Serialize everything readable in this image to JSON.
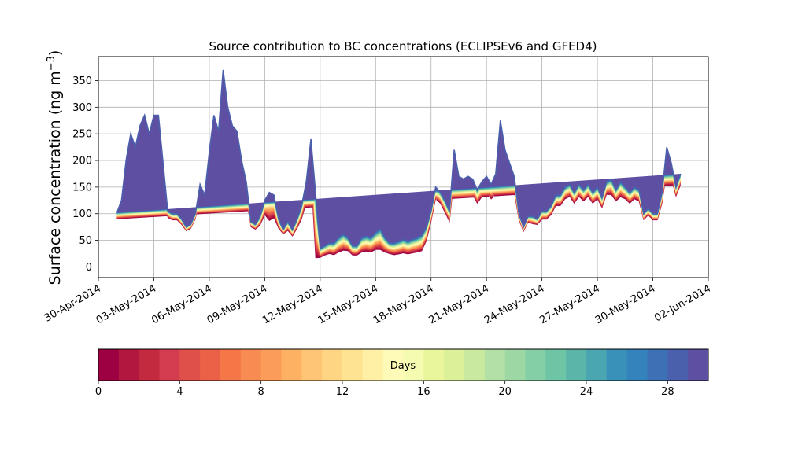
{
  "chart_data": {
    "type": "area",
    "title": "Source contribution to BC concentrations (ECLIPSEv6 and GFED4)",
    "xlabel": "",
    "ylabel": "Surface concentration (ng m",
    "ylabel_unit_sup": "−3",
    "ylabel_suffix": ")",
    "ylim": [
      -20,
      395
    ],
    "xlim": [
      "2014-04-30T00:00",
      "2014-06-02T00:00"
    ],
    "grid": true,
    "yticks": [
      0,
      50,
      100,
      150,
      200,
      250,
      300,
      350
    ],
    "xticks": [
      "30-Apr-2014",
      "03-May-2014",
      "06-May-2014",
      "09-May-2014",
      "12-May-2014",
      "15-May-2014",
      "18-May-2014",
      "21-May-2014",
      "24-May-2014",
      "27-May-2014",
      "30-May-2014",
      "02-Jun-2014"
    ],
    "x": [
      "2014-05-01T00:00",
      "2014-05-01T06:00",
      "2014-05-01T12:00",
      "2014-05-01T18:00",
      "2014-05-02T00:00",
      "2014-05-02T06:00",
      "2014-05-02T12:00",
      "2014-05-02T18:00",
      "2014-05-03T00:00",
      "2014-05-03T06:00",
      "2014-05-03T12:00",
      "2014-05-03T18:00",
      "2014-05-04T00:00",
      "2014-05-04T06:00",
      "2014-05-04T12:00",
      "2014-05-04T18:00",
      "2014-05-05T00:00",
      "2014-05-05T06:00",
      "2014-05-05T12:00",
      "2014-05-05T18:00",
      "2014-05-06T00:00",
      "2014-05-06T06:00",
      "2014-05-06T12:00",
      "2014-05-06T18:00",
      "2014-05-07T00:00",
      "2014-05-07T06:00",
      "2014-05-07T12:00",
      "2014-05-07T18:00",
      "2014-05-08T00:00",
      "2014-05-08T06:00",
      "2014-05-08T12:00",
      "2014-05-08T18:00",
      "2014-05-09T00:00",
      "2014-05-09T06:00",
      "2014-05-09T12:00",
      "2014-05-09T18:00",
      "2014-05-10T00:00",
      "2014-05-10T06:00",
      "2014-05-10T12:00",
      "2014-05-10T18:00",
      "2014-05-11T00:00",
      "2014-05-11T06:00",
      "2014-05-11T12:00",
      "2014-05-11T18:00",
      "2014-05-12T00:00",
      "2014-05-12T06:00",
      "2014-05-12T12:00",
      "2014-05-12T18:00",
      "2014-05-13T00:00",
      "2014-05-13T06:00",
      "2014-05-13T12:00",
      "2014-05-13T18:00",
      "2014-05-14T00:00",
      "2014-05-14T06:00",
      "2014-05-14T12:00",
      "2014-05-14T18:00",
      "2014-05-15T00:00",
      "2014-05-15T06:00",
      "2014-05-15T12:00",
      "2014-05-15T18:00",
      "2014-05-16T00:00",
      "2014-05-16T06:00",
      "2014-05-16T12:00",
      "2014-05-16T18:00",
      "2014-05-17T00:00",
      "2014-05-17T06:00",
      "2014-05-17T12:00",
      "2014-05-17T18:00",
      "2014-05-18T00:00",
      "2014-05-18T06:00",
      "2014-05-18T12:00",
      "2014-05-18T18:00",
      "2014-05-19T00:00",
      "2014-05-19T06:00",
      "2014-05-19T12:00",
      "2014-05-19T18:00",
      "2014-05-20T00:00",
      "2014-05-20T06:00",
      "2014-05-20T12:00",
      "2014-05-20T18:00",
      "2014-05-21T00:00",
      "2014-05-21T06:00",
      "2014-05-21T12:00",
      "2014-05-21T18:00",
      "2014-05-22T00:00",
      "2014-05-22T06:00",
      "2014-05-22T12:00",
      "2014-05-22T18:00",
      "2014-05-23T00:00",
      "2014-05-23T06:00",
      "2014-05-23T12:00",
      "2014-05-23T18:00",
      "2014-05-24T00:00",
      "2014-05-24T06:00",
      "2014-05-24T12:00",
      "2014-05-24T18:00",
      "2014-05-25T00:00",
      "2014-05-25T06:00",
      "2014-05-25T12:00",
      "2014-05-25T18:00",
      "2014-05-26T00:00",
      "2014-05-26T06:00",
      "2014-05-26T12:00",
      "2014-05-26T18:00",
      "2014-05-27T00:00",
      "2014-05-27T06:00",
      "2014-05-27T12:00",
      "2014-05-27T18:00",
      "2014-05-28T00:00",
      "2014-05-28T06:00",
      "2014-05-28T12:00",
      "2014-05-28T18:00",
      "2014-05-29T00:00",
      "2014-05-29T06:00",
      "2014-05-29T12:00",
      "2014-05-29T18:00",
      "2014-05-30T00:00",
      "2014-05-30T06:00",
      "2014-05-30T12:00",
      "2014-05-30T18:00",
      "2014-05-31T00:00",
      "2014-05-31T06:00",
      "2014-05-31T12:00",
      "2014-05-31T18:00",
      "2014-06-01T00:00"
    ],
    "total": [
      102,
      125,
      200,
      250,
      225,
      265,
      285,
      250,
      285,
      285,
      195,
      105,
      100,
      100,
      90,
      75,
      80,
      100,
      155,
      135,
      215,
      285,
      255,
      370,
      300,
      265,
      255,
      200,
      160,
      85,
      80,
      95,
      125,
      140,
      135,
      90,
      70,
      85,
      70,
      90,
      115,
      160,
      240,
      140,
      35,
      40,
      45,
      45,
      55,
      62,
      55,
      40,
      40,
      55,
      58,
      55,
      65,
      72,
      55,
      45,
      45,
      48,
      52,
      48,
      52,
      55,
      60,
      75,
      105,
      150,
      140,
      125,
      105,
      220,
      170,
      165,
      170,
      165,
      145,
      160,
      170,
      155,
      175,
      275,
      220,
      195,
      170,
      100,
      75,
      95,
      95,
      90,
      105,
      105,
      115,
      135,
      135,
      150,
      155,
      140,
      155,
      145,
      155,
      140,
      150,
      130,
      160,
      165,
      145,
      160,
      150,
      140,
      150,
      145,
      100,
      110,
      100,
      100,
      140,
      225,
      195,
      150,
      175
    ],
    "series_bands": [
      {
        "name": "",
        "values": [
          0.88,
          0.88,
          0.8,
          0.62,
          0.75,
          0.8,
          0.7,
          0.62,
          0.8,
          0.6,
          0.7,
          0.88,
          0.88,
          0.88,
          0.88,
          0.9,
          0.9,
          0.9,
          0.85,
          0.85,
          0.78,
          0.6,
          0.62,
          0.7,
          0.7,
          0.78,
          0.78,
          0.8,
          0.8,
          0.88,
          0.88,
          0.82,
          0.78,
          0.62,
          0.68,
          0.8,
          0.88,
          0.8,
          0.82,
          0.8,
          0.78,
          0.75,
          0.72,
          0.12,
          0.5,
          0.55,
          0.55,
          0.5,
          0.5,
          0.5,
          0.55,
          0.55,
          0.55,
          0.5,
          0.5,
          0.5,
          0.5,
          0.45,
          0.5,
          0.55,
          0.5,
          0.5,
          0.5,
          0.5,
          0.5,
          0.5,
          0.5,
          0.65,
          0.8,
          0.85,
          0.85,
          0.82,
          0.8,
          0.75,
          0.8,
          0.82,
          0.82,
          0.82,
          0.82,
          0.82,
          0.82,
          0.82,
          0.78,
          0.65,
          0.72,
          0.78,
          0.82,
          0.88,
          0.88,
          0.88,
          0.85,
          0.88,
          0.85,
          0.85,
          0.85,
          0.85,
          0.85,
          0.85,
          0.85,
          0.85,
          0.85,
          0.85,
          0.85,
          0.85,
          0.85,
          0.85,
          0.85,
          0.82,
          0.85,
          0.82,
          0.85,
          0.85,
          0.85,
          0.85,
          0.88,
          0.88,
          0.88,
          0.88,
          0.85,
          0.8,
          0.85,
          0.88,
          0.88
        ]
      }
    ],
    "colorbar": {
      "label": "Days",
      "min": 0,
      "max": 30,
      "ticks": [
        0,
        4,
        8,
        12,
        16,
        20,
        24,
        28
      ],
      "colors": [
        "#9e0142",
        "#b2173f",
        "#c3293f",
        "#d43d4f",
        "#e0504a",
        "#ea6148",
        "#f57748",
        "#f88b52",
        "#fb9d59",
        "#fdb163",
        "#fec574",
        "#fed582",
        "#fee392",
        "#fff0a6",
        "#fefbb9",
        "#f6fbb2",
        "#eaf69c",
        "#dcf09a",
        "#c8e99e",
        "#b3e0a6",
        "#9dd7a4",
        "#84cfa5",
        "#6dc5a5",
        "#5bb6a9",
        "#4aa6b1",
        "#3990b9",
        "#3483bd",
        "#3d71b5",
        "#4b60ad",
        "#5e4fa2"
      ]
    }
  }
}
